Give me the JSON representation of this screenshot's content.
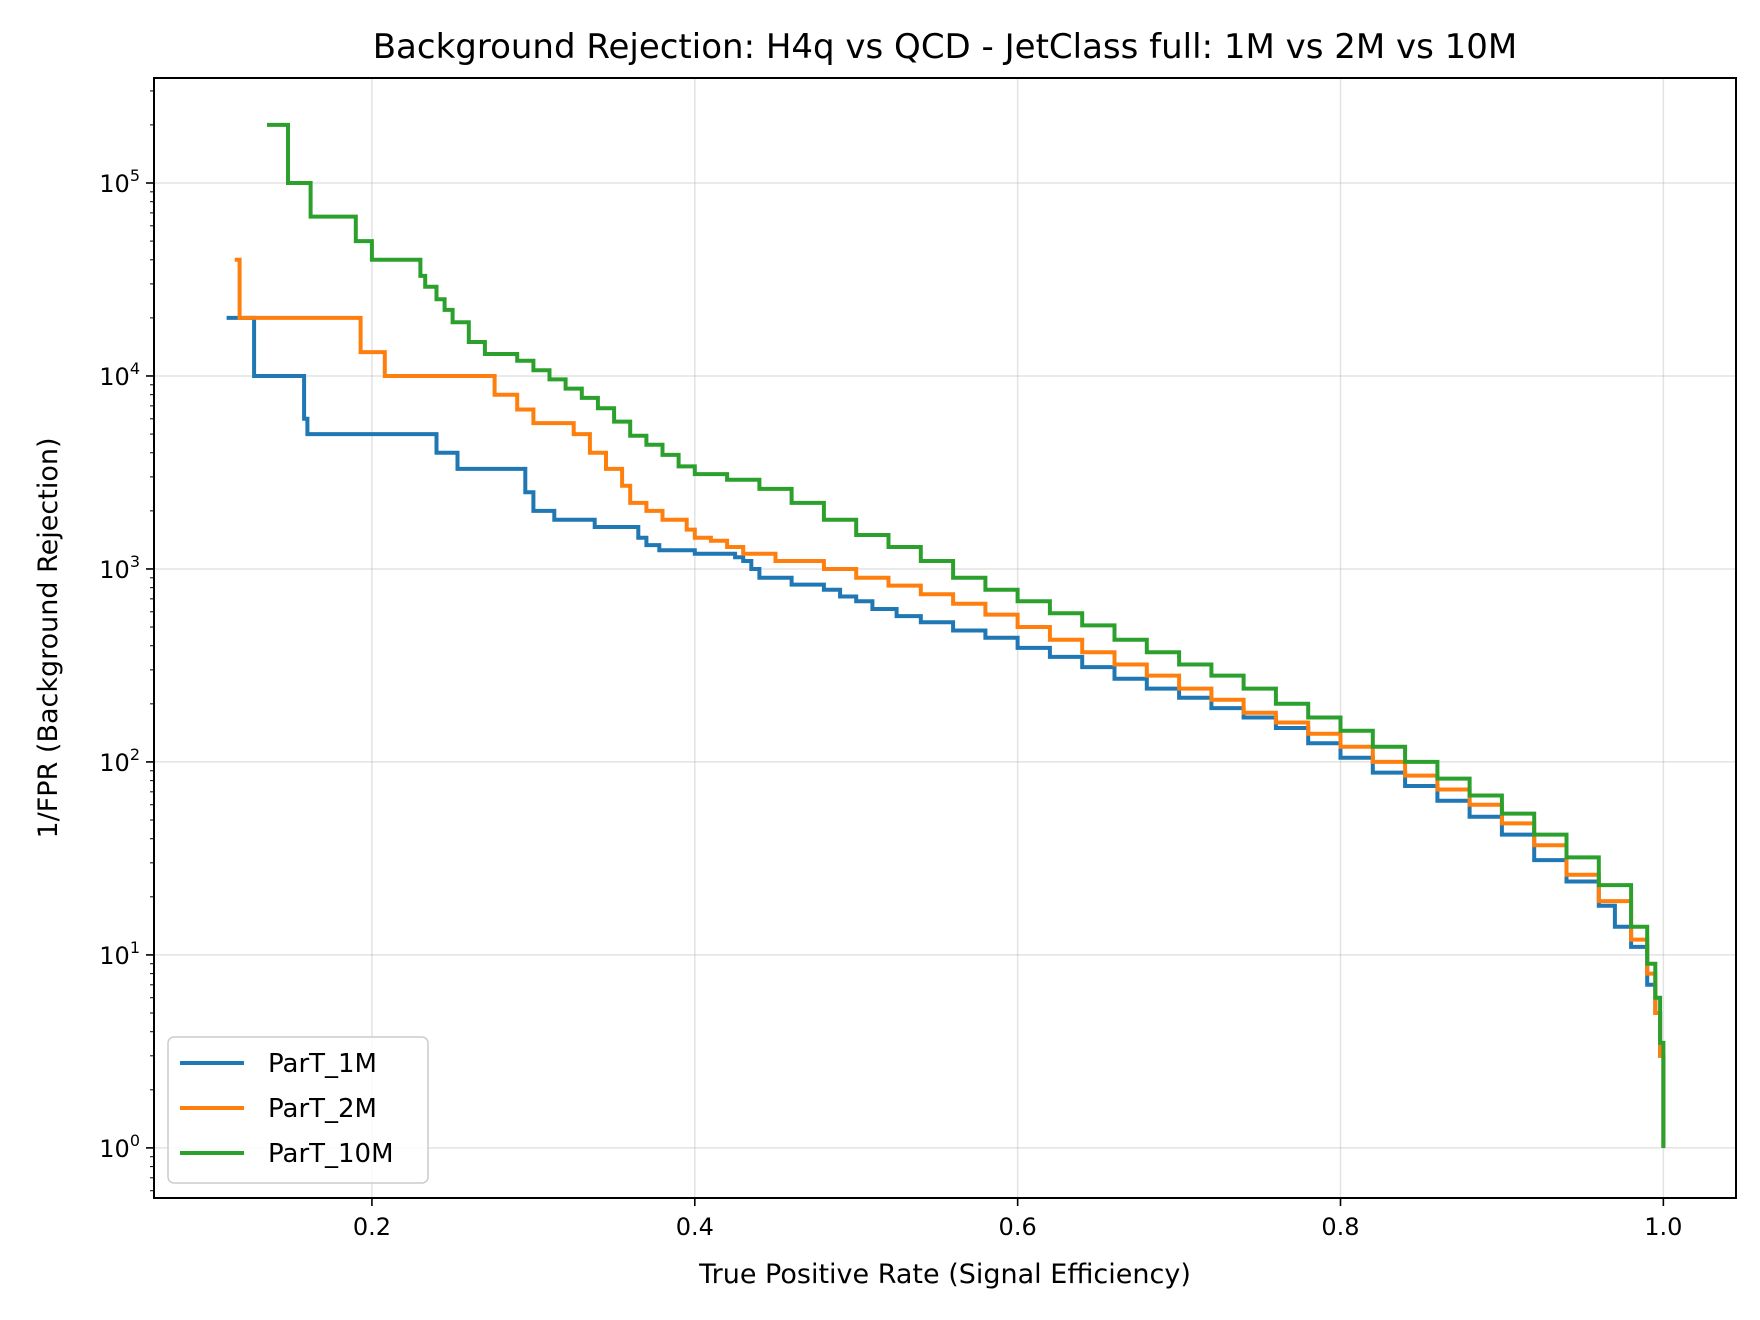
{
  "chart_data": {
    "type": "line",
    "title": "Background Rejection: H4q vs QCD - JetClass full: 1M vs 2M vs 10M",
    "xlabel": "True Positive Rate (Signal Efficiency)",
    "ylabel": "1/FPR (Background Rejection)",
    "xscale": "linear",
    "yscale": "log",
    "xlim": [
      0.065,
      1.045
    ],
    "ylim": [
      0.55,
      350000
    ],
    "grid": true,
    "legend_location": "lower left",
    "x_ticks": [
      {
        "value": 0.2,
        "label": "0.2"
      },
      {
        "value": 0.4,
        "label": "0.4"
      },
      {
        "value": 0.6,
        "label": "0.6"
      },
      {
        "value": 0.8,
        "label": "0.8"
      },
      {
        "value": 1.0,
        "label": "1.0"
      }
    ],
    "y_ticks": [
      {
        "value": 1,
        "base": "10",
        "exp": "0"
      },
      {
        "value": 10,
        "base": "10",
        "exp": "1"
      },
      {
        "value": 100,
        "base": "10",
        "exp": "2"
      },
      {
        "value": 1000,
        "base": "10",
        "exp": "3"
      },
      {
        "value": 10000,
        "base": "10",
        "exp": "4"
      },
      {
        "value": 100000,
        "base": "10",
        "exp": "5"
      }
    ],
    "series": [
      {
        "name": "ParT_1M",
        "color": "#1f77b4",
        "step": true,
        "points": [
          [
            0.11,
            20000
          ],
          [
            0.127,
            10000
          ],
          [
            0.158,
            6000
          ],
          [
            0.16,
            5000
          ],
          [
            0.24,
            4000
          ],
          [
            0.253,
            3300
          ],
          [
            0.295,
            2500
          ],
          [
            0.3,
            2000
          ],
          [
            0.313,
            1800
          ],
          [
            0.338,
            1650
          ],
          [
            0.365,
            1450
          ],
          [
            0.37,
            1330
          ],
          [
            0.378,
            1250
          ],
          [
            0.4,
            1200
          ],
          [
            0.425,
            1150
          ],
          [
            0.43,
            1100
          ],
          [
            0.435,
            1000
          ],
          [
            0.44,
            900
          ],
          [
            0.46,
            830
          ],
          [
            0.48,
            780
          ],
          [
            0.49,
            720
          ],
          [
            0.5,
            680
          ],
          [
            0.51,
            620
          ],
          [
            0.525,
            570
          ],
          [
            0.54,
            530
          ],
          [
            0.56,
            480
          ],
          [
            0.58,
            440
          ],
          [
            0.6,
            390
          ],
          [
            0.62,
            350
          ],
          [
            0.64,
            310
          ],
          [
            0.66,
            270
          ],
          [
            0.68,
            240
          ],
          [
            0.7,
            215
          ],
          [
            0.72,
            190
          ],
          [
            0.74,
            170
          ],
          [
            0.76,
            150
          ],
          [
            0.78,
            125
          ],
          [
            0.8,
            105
          ],
          [
            0.82,
            88
          ],
          [
            0.84,
            75
          ],
          [
            0.86,
            63
          ],
          [
            0.88,
            52
          ],
          [
            0.9,
            42
          ],
          [
            0.92,
            31
          ],
          [
            0.94,
            24
          ],
          [
            0.96,
            18
          ],
          [
            0.97,
            14
          ],
          [
            0.98,
            11
          ],
          [
            0.99,
            7
          ],
          [
            0.995,
            5
          ],
          [
            0.998,
            3
          ],
          [
            1.0,
            1
          ]
        ]
      },
      {
        "name": "ParT_2M",
        "color": "#ff7f0e",
        "step": true,
        "points": [
          [
            0.115,
            40000
          ],
          [
            0.118,
            20000
          ],
          [
            0.193,
            13300
          ],
          [
            0.208,
            10000
          ],
          [
            0.276,
            8000
          ],
          [
            0.29,
            6700
          ],
          [
            0.3,
            5700
          ],
          [
            0.325,
            5000
          ],
          [
            0.335,
            4000
          ],
          [
            0.345,
            3300
          ],
          [
            0.355,
            2700
          ],
          [
            0.36,
            2200
          ],
          [
            0.37,
            2000
          ],
          [
            0.38,
            1800
          ],
          [
            0.395,
            1600
          ],
          [
            0.4,
            1450
          ],
          [
            0.41,
            1400
          ],
          [
            0.42,
            1300
          ],
          [
            0.43,
            1200
          ],
          [
            0.45,
            1100
          ],
          [
            0.48,
            1000
          ],
          [
            0.5,
            900
          ],
          [
            0.52,
            820
          ],
          [
            0.54,
            740
          ],
          [
            0.56,
            660
          ],
          [
            0.58,
            580
          ],
          [
            0.6,
            500
          ],
          [
            0.62,
            430
          ],
          [
            0.64,
            370
          ],
          [
            0.66,
            320
          ],
          [
            0.68,
            280
          ],
          [
            0.7,
            240
          ],
          [
            0.72,
            210
          ],
          [
            0.74,
            180
          ],
          [
            0.76,
            160
          ],
          [
            0.78,
            140
          ],
          [
            0.8,
            120
          ],
          [
            0.82,
            100
          ],
          [
            0.84,
            85
          ],
          [
            0.86,
            72
          ],
          [
            0.88,
            60
          ],
          [
            0.9,
            48
          ],
          [
            0.92,
            37
          ],
          [
            0.94,
            26
          ],
          [
            0.96,
            19
          ],
          [
            0.98,
            12
          ],
          [
            0.99,
            8
          ],
          [
            0.995,
            5
          ],
          [
            0.998,
            3
          ],
          [
            1.0,
            1
          ]
        ]
      },
      {
        "name": "ParT_10M",
        "color": "#2ca02c",
        "step": true,
        "points": [
          [
            0.135,
            200000
          ],
          [
            0.148,
            100000
          ],
          [
            0.162,
            67000
          ],
          [
            0.19,
            50000
          ],
          [
            0.2,
            40000
          ],
          [
            0.23,
            33000
          ],
          [
            0.233,
            29000
          ],
          [
            0.24,
            25000
          ],
          [
            0.245,
            22000
          ],
          [
            0.25,
            19000
          ],
          [
            0.26,
            15000
          ],
          [
            0.27,
            13000
          ],
          [
            0.29,
            12000
          ],
          [
            0.3,
            10700
          ],
          [
            0.31,
            9600
          ],
          [
            0.32,
            8600
          ],
          [
            0.33,
            7700
          ],
          [
            0.34,
            6800
          ],
          [
            0.35,
            5800
          ],
          [
            0.36,
            4900
          ],
          [
            0.37,
            4400
          ],
          [
            0.38,
            3900
          ],
          [
            0.39,
            3400
          ],
          [
            0.4,
            3100
          ],
          [
            0.42,
            2900
          ],
          [
            0.44,
            2600
          ],
          [
            0.46,
            2200
          ],
          [
            0.48,
            1800
          ],
          [
            0.5,
            1500
          ],
          [
            0.52,
            1300
          ],
          [
            0.54,
            1100
          ],
          [
            0.56,
            900
          ],
          [
            0.58,
            780
          ],
          [
            0.6,
            680
          ],
          [
            0.62,
            590
          ],
          [
            0.64,
            510
          ],
          [
            0.66,
            430
          ],
          [
            0.68,
            370
          ],
          [
            0.7,
            320
          ],
          [
            0.72,
            280
          ],
          [
            0.74,
            240
          ],
          [
            0.76,
            200
          ],
          [
            0.78,
            170
          ],
          [
            0.8,
            145
          ],
          [
            0.82,
            120
          ],
          [
            0.84,
            100
          ],
          [
            0.86,
            82
          ],
          [
            0.88,
            67
          ],
          [
            0.9,
            54
          ],
          [
            0.92,
            42
          ],
          [
            0.94,
            32
          ],
          [
            0.96,
            23
          ],
          [
            0.98,
            14
          ],
          [
            0.99,
            9
          ],
          [
            0.995,
            6
          ],
          [
            0.998,
            3.5
          ],
          [
            1.0,
            1
          ]
        ]
      }
    ]
  }
}
